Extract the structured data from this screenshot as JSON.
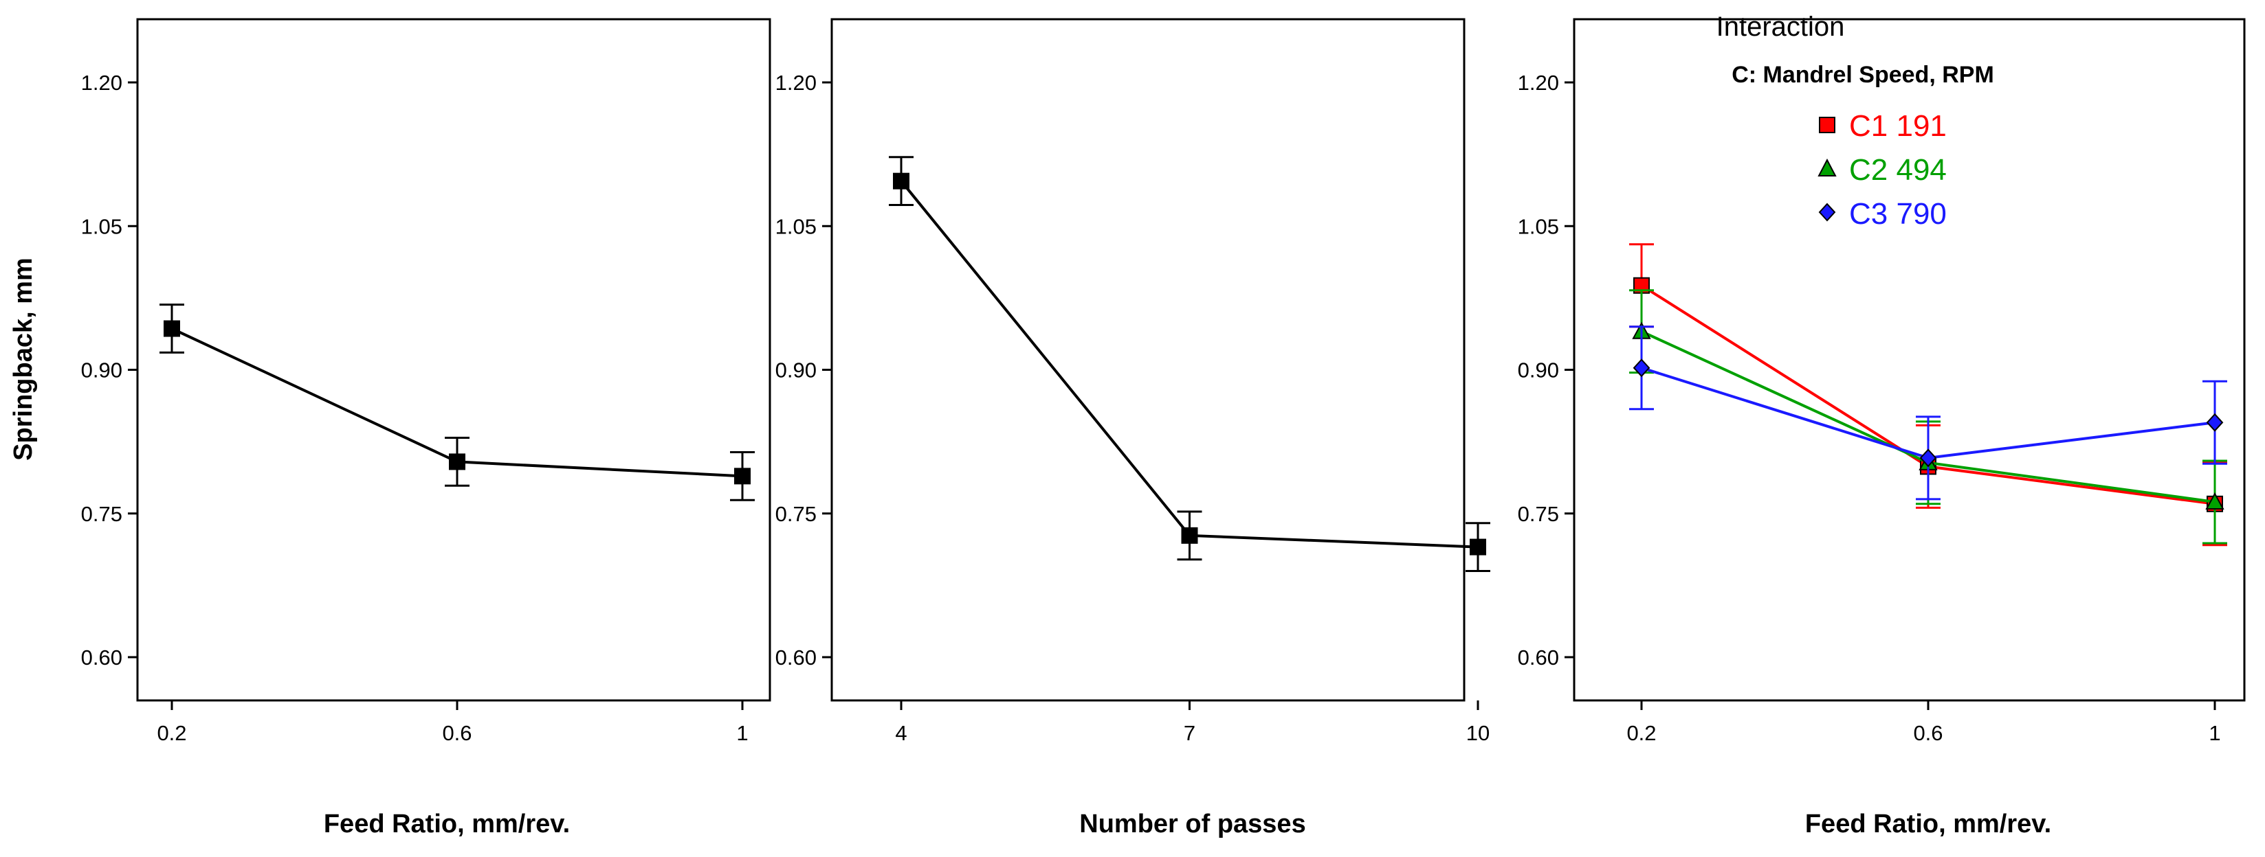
{
  "chart_data": [
    {
      "type": "line",
      "title": "",
      "xlabel": "Feed Ratio, mm/rev.",
      "ylabel": "Springback, mm",
      "x": [
        0.2,
        0.6,
        1
      ],
      "x_tick_labels": [
        "0.2",
        "0.6",
        "1"
      ],
      "y_tick_labels": [
        "0.60",
        "0.75",
        "0.90",
        "1.05",
        "1.20"
      ],
      "y_ticks": [
        0.6,
        0.75,
        0.9,
        1.05,
        1.2
      ],
      "ylim": [
        0.555,
        1.265
      ],
      "xlim": [
        0.2,
        1
      ],
      "series": [
        {
          "color": "#000000",
          "marker": "square",
          "values": [
            0.943,
            0.804,
            0.789
          ],
          "error": [
            0.025,
            0.025,
            0.025
          ]
        }
      ]
    },
    {
      "type": "line",
      "title": "",
      "xlabel": "Number of passes",
      "ylabel": "",
      "x": [
        4,
        7,
        10
      ],
      "x_tick_labels": [
        "4",
        "7",
        "10"
      ],
      "y_tick_labels": [
        "0.60",
        "0.75",
        "0.90",
        "1.05",
        "1.20"
      ],
      "y_ticks": [
        0.6,
        0.75,
        0.9,
        1.05,
        1.2
      ],
      "ylim": [
        0.555,
        1.265
      ],
      "xlim": [
        4,
        10
      ],
      "series": [
        {
          "color": "#000000",
          "marker": "square",
          "values": [
            1.097,
            0.727,
            0.715
          ],
          "error": [
            0.025,
            0.025,
            0.025
          ]
        }
      ]
    },
    {
      "type": "line",
      "title": "Interaction",
      "legend_title": "C: Mandrel Speed, RPM",
      "legend_position": "top-center",
      "xlabel": "Feed Ratio, mm/rev.",
      "ylabel": "",
      "x": [
        0.2,
        0.6,
        1
      ],
      "x_tick_labels": [
        "0.2",
        "0.6",
        "1"
      ],
      "y_tick_labels": [
        "0.60",
        "0.75",
        "0.90",
        "1.05",
        "1.20"
      ],
      "y_ticks": [
        0.6,
        0.75,
        0.9,
        1.05,
        1.2
      ],
      "ylim": [
        0.555,
        1.265
      ],
      "xlim": [
        0.2,
        1
      ],
      "series": [
        {
          "name": "C1 191",
          "color": "#ff0000",
          "marker": "square",
          "values": [
            0.988,
            0.799,
            0.76
          ],
          "error": [
            0.043,
            0.043,
            0.043
          ]
        },
        {
          "name": "C2 494",
          "color": "#00a000",
          "marker": "triangle",
          "values": [
            0.94,
            0.803,
            0.762
          ],
          "error": [
            0.043,
            0.043,
            0.043
          ]
        },
        {
          "name": "C3 790",
          "color": "#1a1aff",
          "marker": "diamond",
          "values": [
            0.902,
            0.808,
            0.845
          ],
          "error": [
            0.043,
            0.043,
            0.043
          ]
        }
      ]
    }
  ]
}
